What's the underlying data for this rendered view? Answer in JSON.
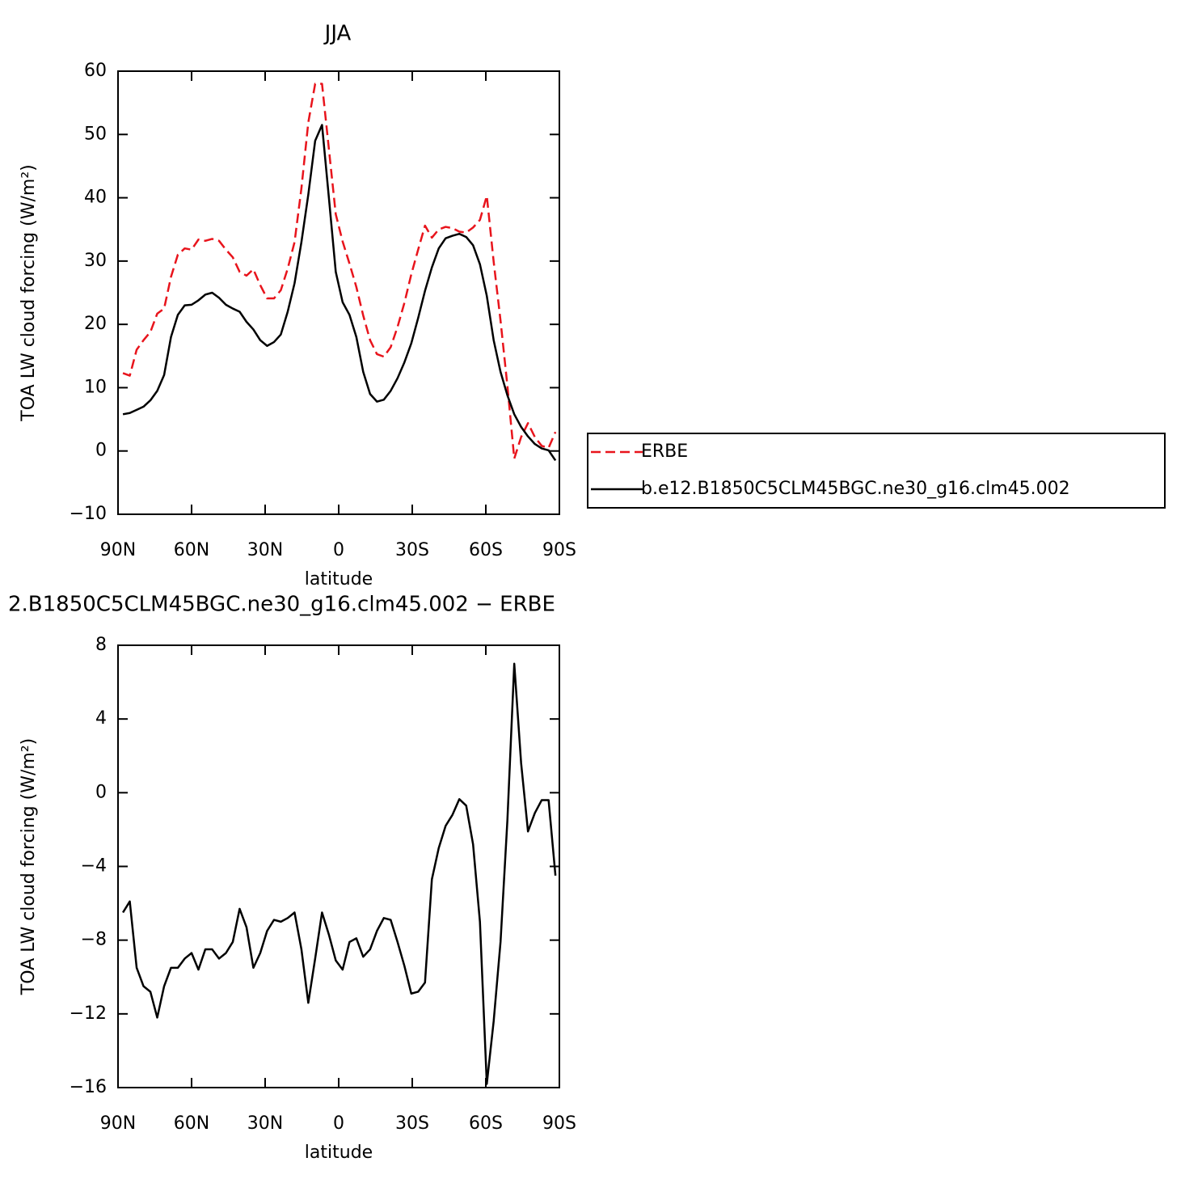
{
  "chart_data": [
    {
      "type": "line",
      "title": "JJA",
      "xlabel": "latitude",
      "ylabel": "TOA LW cloud forcing (W/m²)",
      "x": [
        88.0,
        85.2,
        82.4,
        79.6,
        76.8,
        74.0,
        71.2,
        68.4,
        65.6,
        62.8,
        60.0,
        57.2,
        54.4,
        51.6,
        48.8,
        46.0,
        43.2,
        40.4,
        37.6,
        34.8,
        32.0,
        29.2,
        26.4,
        23.6,
        20.8,
        18.0,
        15.2,
        12.4,
        9.6,
        6.8,
        4.0,
        1.2,
        -1.6,
        -4.4,
        -7.2,
        -10.0,
        -12.8,
        -15.6,
        -18.4,
        -21.2,
        -24.0,
        -26.8,
        -29.6,
        -32.4,
        -35.2,
        -38.0,
        -40.8,
        -43.6,
        -46.4,
        -49.2,
        -52.0,
        -54.8,
        -57.6,
        -60.4,
        -63.2,
        -66.0,
        -68.8,
        -71.6,
        -74.4,
        -77.2,
        -80.0,
        -82.8,
        -85.6,
        -88.4
      ],
      "series": [
        {
          "name": "ERBE",
          "color": "#e8141c",
          "linestyle": "dashed",
          "values": [
            12.3,
            11.9,
            16.0,
            17.5,
            18.8,
            21.7,
            22.5,
            27.5,
            31.0,
            32.0,
            31.8,
            33.4,
            33.2,
            33.5,
            33.2,
            31.8,
            30.6,
            28.3,
            27.7,
            28.7,
            26.2,
            24.1,
            24.1,
            25.4,
            28.8,
            33.0,
            41.5,
            51.9,
            58.0,
            58.0,
            47.7,
            37.4,
            33.1,
            29.6,
            25.9,
            21.4,
            17.5,
            15.3,
            14.9,
            16.4,
            19.6,
            23.4,
            27.9,
            31.8,
            35.6,
            33.7,
            35.0,
            35.4,
            35.2,
            34.65,
            34.5,
            35.3,
            36.5,
            40.3,
            29.9,
            20.6,
            10.3,
            -1.2,
            2.2,
            4.4,
            2.2,
            0.8,
            0.5,
            3.0
          ]
        },
        {
          "name": "b.e12.B1850C5CLM45BGC.ne30_g16.clm45.002",
          "color": "#000000",
          "linestyle": "solid",
          "values": [
            5.8,
            6.0,
            6.5,
            7.0,
            8.0,
            9.5,
            12.0,
            18.0,
            21.5,
            23.0,
            23.1,
            23.8,
            24.7,
            25.0,
            24.2,
            23.1,
            22.5,
            22.0,
            20.4,
            19.2,
            17.5,
            16.6,
            17.2,
            18.4,
            22.0,
            26.5,
            33.0,
            40.5,
            49.0,
            51.5,
            40.0,
            28.3,
            23.5,
            21.5,
            18.0,
            12.5,
            9.0,
            7.8,
            8.1,
            9.5,
            11.5,
            14.0,
            17.0,
            21.0,
            25.3,
            29.0,
            32.0,
            33.6,
            34.0,
            34.3,
            33.8,
            32.5,
            29.5,
            24.5,
            17.5,
            12.5,
            8.8,
            5.8,
            3.8,
            2.3,
            1.1,
            0.4,
            0.1,
            -1.5
          ]
        }
      ],
      "xlim": [
        90,
        -90
      ],
      "xticks": [
        {
          "value": 90,
          "label": "90N"
        },
        {
          "value": 60,
          "label": "60N"
        },
        {
          "value": 30,
          "label": "30N"
        },
        0,
        {
          "value": -30,
          "label": "30S"
        },
        {
          "value": -60,
          "label": "60S"
        },
        {
          "value": -90,
          "label": "90S"
        }
      ],
      "ylim": [
        -10,
        60
      ],
      "yticks": [
        {
          "value": -10,
          "label": "−10"
        },
        0,
        10,
        20,
        30,
        40,
        50,
        60
      ],
      "legend": "right"
    },
    {
      "type": "line",
      "title": "2.B1850C5CLM45BGC.ne30_g16.clm45.002 − ERBE",
      "xlabel": "latitude",
      "ylabel": "TOA LW cloud forcing (W/m²)",
      "x": [
        88.0,
        85.2,
        82.4,
        79.6,
        76.8,
        74.0,
        71.2,
        68.4,
        65.6,
        62.8,
        60.0,
        57.2,
        54.4,
        51.6,
        48.8,
        46.0,
        43.2,
        40.4,
        37.6,
        34.8,
        32.0,
        29.2,
        26.4,
        23.6,
        20.8,
        18.0,
        15.2,
        12.4,
        9.6,
        6.8,
        4.0,
        1.2,
        -1.6,
        -4.4,
        -7.2,
        -10.0,
        -12.8,
        -15.6,
        -18.4,
        -21.2,
        -24.0,
        -26.8,
        -29.6,
        -32.4,
        -35.2,
        -38.0,
        -40.8,
        -43.6,
        -46.4,
        -49.2,
        -52.0,
        -54.8,
        -57.6,
        -60.4,
        -63.2,
        -66.0,
        -68.8,
        -71.6,
        -74.4,
        -77.2,
        -80.0,
        -82.8,
        -85.6,
        -88.4
      ],
      "series": [
        {
          "color": "#000000",
          "linestyle": "solid",
          "values": [
            -6.5,
            -5.9,
            -9.5,
            -10.5,
            -10.8,
            -12.2,
            -10.5,
            -9.5,
            -9.5,
            -9.0,
            -8.7,
            -9.6,
            -8.5,
            -8.5,
            -9.0,
            -8.7,
            -8.1,
            -6.3,
            -7.3,
            -9.5,
            -8.7,
            -7.5,
            -6.9,
            -7.0,
            -6.8,
            -6.5,
            -8.5,
            -11.4,
            -9.0,
            -6.5,
            -7.7,
            -9.1,
            -9.6,
            -8.1,
            -7.9,
            -8.9,
            -8.5,
            -7.5,
            -6.8,
            -6.9,
            -8.1,
            -9.4,
            -10.9,
            -10.8,
            -10.3,
            -4.7,
            -3.0,
            -1.8,
            -1.2,
            -0.35,
            -0.7,
            -2.8,
            -7.0,
            -15.8,
            -12.4,
            -8.1,
            -1.5,
            7.0,
            1.6,
            -2.1,
            -1.1,
            -0.4,
            -0.4,
            -4.5
          ]
        }
      ],
      "xlim": [
        90,
        -90
      ],
      "xticks": [
        {
          "value": 90,
          "label": "90N"
        },
        {
          "value": 60,
          "label": "60N"
        },
        {
          "value": 30,
          "label": "30N"
        },
        0,
        {
          "value": -30,
          "label": "30S"
        },
        {
          "value": -60,
          "label": "60S"
        },
        {
          "value": -90,
          "label": "90S"
        }
      ],
      "ylim": [
        -16,
        8
      ],
      "yticks": [
        {
          "value": -16,
          "label": "−16"
        },
        {
          "value": -12,
          "label": "−12"
        },
        {
          "value": -8,
          "label": "−8"
        },
        {
          "value": -4,
          "label": "−4"
        },
        0,
        4,
        8
      ]
    }
  ]
}
